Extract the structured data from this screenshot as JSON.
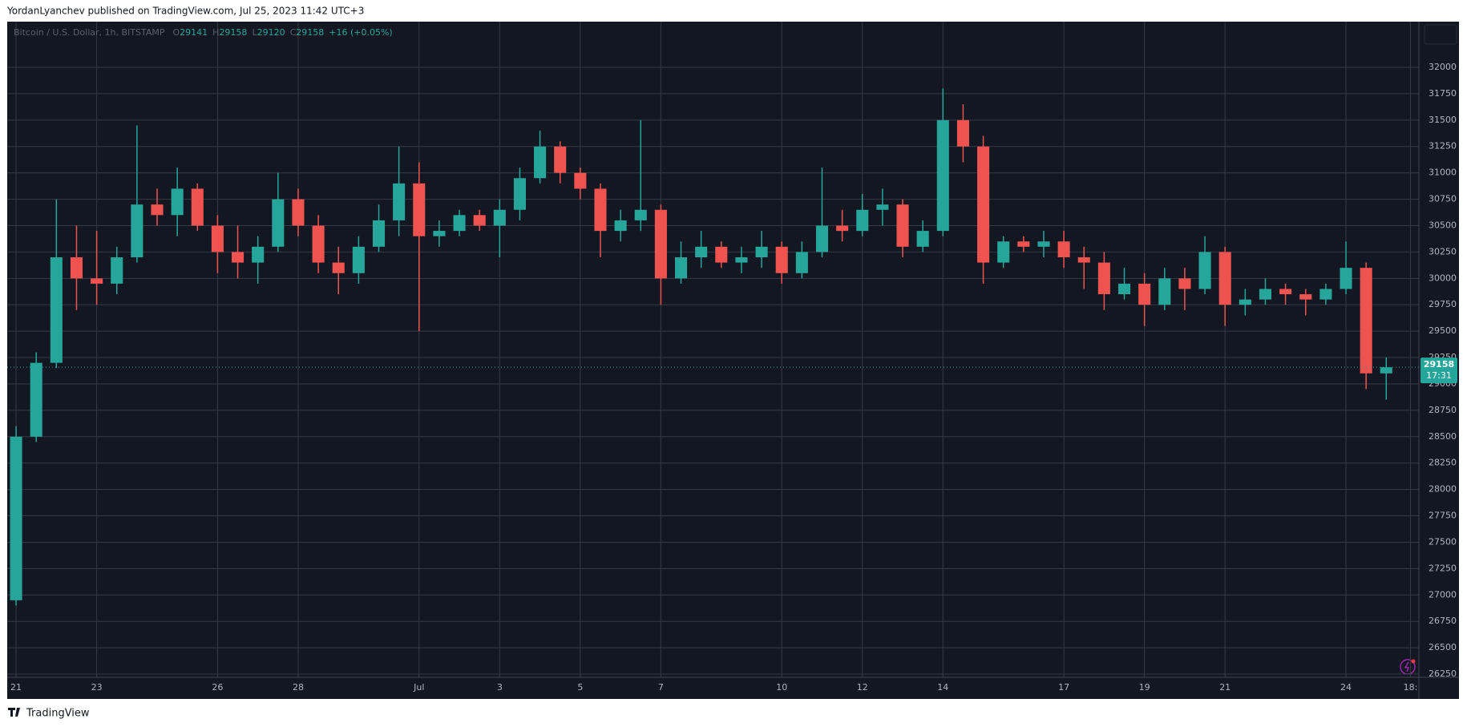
{
  "header": {
    "text": "YordanLyanchev published on TradingView.com, Jul 25, 2023 11:42 UTC+3"
  },
  "footer": {
    "brand": "TradingView"
  },
  "chart_data": {
    "type": "candlestick",
    "title": "Bitcoin / U.S. Dollar, 1h, BITSTAMP",
    "ohlc_legend": [
      {
        "label": "O",
        "value": 29141
      },
      {
        "label": "H",
        "value": 29158
      },
      {
        "label": "L",
        "value": 29120
      },
      {
        "label": "C",
        "value": 29158
      }
    ],
    "change": "+16 (+0.05%)",
    "up_color": "#26a69a",
    "down_color": "#ef5350",
    "grid": true,
    "x": [
      1,
      1.5,
      2,
      2.5,
      3,
      3.5,
      4,
      4.5,
      5,
      5.5,
      6,
      6.5,
      7,
      7.5,
      8,
      8.5,
      9,
      9.5,
      10,
      10.5,
      11,
      11.5,
      12,
      12.5,
      13,
      13.5,
      14,
      14.5,
      15,
      15.5,
      16,
      16.5,
      17,
      17.5,
      18,
      18.5,
      19,
      19.5,
      20,
      20.5,
      21,
      21.5,
      22,
      22.5,
      23,
      23.5,
      24,
      24.5,
      25,
      25.5,
      26,
      26.5,
      27,
      27.5,
      28,
      28.5,
      29,
      29.5,
      30,
      30.5,
      31,
      31.5,
      32,
      32.5,
      33,
      33.5,
      34,
      34.5,
      35
    ],
    "open": [
      26950,
      28500,
      29200,
      30200,
      30000,
      29950,
      30200,
      30700,
      30600,
      30850,
      30500,
      30250,
      30150,
      30300,
      30750,
      30500,
      30150,
      30050,
      30300,
      30550,
      30900,
      30400,
      30450,
      30600,
      30500,
      30650,
      30950,
      31250,
      31000,
      30850,
      30450,
      30550,
      30650,
      30000,
      30200,
      30300,
      30150,
      30200,
      30300,
      30050,
      30250,
      30500,
      30450,
      30650,
      30700,
      30300,
      30450,
      31500,
      31250,
      30150,
      30350,
      30300,
      30350,
      30200,
      30150,
      29850,
      29950,
      29750,
      30000,
      29900,
      30250,
      29750,
      29800,
      29900,
      29850,
      29800,
      29900,
      30100,
      29100
    ],
    "high": [
      28600,
      29300,
      30750,
      30500,
      30450,
      30300,
      31450,
      30850,
      31050,
      30900,
      30600,
      30500,
      30400,
      31000,
      30850,
      30600,
      30300,
      30400,
      30700,
      31250,
      31100,
      30550,
      30650,
      30650,
      30750,
      31050,
      31400,
      31300,
      31050,
      30900,
      30650,
      31500,
      30700,
      30350,
      30450,
      30350,
      30300,
      30450,
      30350,
      30350,
      31050,
      30650,
      30800,
      30850,
      30750,
      30550,
      31800,
      31650,
      31350,
      30400,
      30400,
      30450,
      30450,
      30300,
      30250,
      30100,
      30050,
      30100,
      30100,
      30400,
      30300,
      29900,
      30000,
      29950,
      29900,
      29950,
      30350,
      30150,
      29250
    ],
    "low": [
      26900,
      28450,
      29150,
      29700,
      29750,
      29850,
      30150,
      30500,
      30400,
      30450,
      30050,
      30000,
      29950,
      30250,
      30400,
      30050,
      29850,
      29950,
      30250,
      30400,
      29500,
      30300,
      30400,
      30450,
      30200,
      30550,
      30900,
      30900,
      30750,
      30200,
      30350,
      30450,
      29750,
      29950,
      30100,
      30100,
      30050,
      30100,
      29950,
      30000,
      30200,
      30350,
      30400,
      30500,
      30200,
      30250,
      30400,
      31100,
      29950,
      30100,
      30250,
      30200,
      30100,
      29900,
      29700,
      29800,
      29550,
      29700,
      29700,
      29850,
      29550,
      29650,
      29750,
      29750,
      29650,
      29750,
      29850,
      28950,
      28850
    ],
    "close": [
      28500,
      29200,
      30200,
      30000,
      29950,
      30200,
      30700,
      30600,
      30850,
      30500,
      30250,
      30150,
      30300,
      30750,
      30500,
      30150,
      30050,
      30300,
      30550,
      30900,
      30400,
      30450,
      30600,
      30500,
      30650,
      30950,
      31250,
      31000,
      30850,
      30450,
      30550,
      30650,
      30000,
      30200,
      30300,
      30150,
      30200,
      30300,
      30050,
      30250,
      30500,
      30450,
      30650,
      30700,
      30300,
      30450,
      31500,
      31250,
      30150,
      30350,
      30300,
      30350,
      30200,
      30150,
      29850,
      29950,
      29750,
      30000,
      29900,
      30250,
      29750,
      29800,
      29900,
      29850,
      29800,
      29900,
      30100,
      29100,
      29158
    ],
    "xlim": [
      0.78,
      35.81
    ],
    "xticks": [
      {
        "value": 1,
        "label": "21"
      },
      {
        "value": 3,
        "label": "23"
      },
      {
        "value": 6,
        "label": "26"
      },
      {
        "value": 8,
        "label": "28"
      },
      {
        "value": 11,
        "label": "Jul"
      },
      {
        "value": 13,
        "label": "3"
      },
      {
        "value": 15,
        "label": "5"
      },
      {
        "value": 17,
        "label": "7"
      },
      {
        "value": 20,
        "label": "10"
      },
      {
        "value": 22,
        "label": "12"
      },
      {
        "value": 24,
        "label": "14"
      },
      {
        "value": 27,
        "label": "17"
      },
      {
        "value": 29,
        "label": "19"
      },
      {
        "value": 31,
        "label": "21"
      },
      {
        "value": 34,
        "label": "24"
      },
      {
        "value": 35.6,
        "label": "18:"
      }
    ],
    "ylim": [
      26235,
      32433
    ],
    "yticks": [
      26250,
      26500,
      26750,
      27000,
      27250,
      27500,
      27750,
      28000,
      28250,
      28500,
      28750,
      29000,
      29250,
      29500,
      29750,
      30000,
      30250,
      30500,
      30750,
      31000,
      31250,
      31500,
      31750,
      32000
    ],
    "last_price": {
      "value": 29158,
      "countdown": "17:31"
    }
  }
}
